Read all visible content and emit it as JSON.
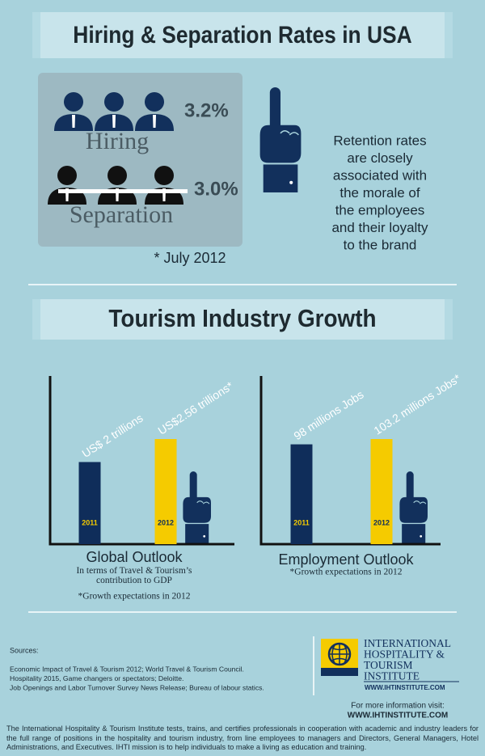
{
  "hiring": {
    "title": "Hiring & Separation Rates in USA",
    "hiring_rate": "3.2%",
    "hiring_label": "Hiring",
    "separation_rate": "3.0%",
    "separation_label": "Separation",
    "note": "* July 2012",
    "retention_lines": [
      "Retention rates",
      "are closely",
      "associated with",
      "the morale of",
      "the employees",
      "and their loyalty",
      "to the brand"
    ]
  },
  "growth": {
    "title": "Tourism Industry Growth"
  },
  "chart_data": [
    {
      "type": "bar",
      "title": "Global Outlook",
      "subtitle": "In terms of Travel & Tourism’s contribution to GDP",
      "note": "*Growth expectations in 2012",
      "categories": [
        "2011",
        "2012"
      ],
      "values": [
        2,
        2.56
      ],
      "value_labels": [
        "US$ 2 trillions",
        "US$2.56 trillions*"
      ],
      "colors": [
        "#0f2d5a",
        "#f5cb00"
      ]
    },
    {
      "type": "bar",
      "title": "Employment Outlook",
      "note": "*Growth expectations in 2012",
      "categories": [
        "2011",
        "2012"
      ],
      "values": [
        98,
        103.2
      ],
      "value_labels": [
        "98 millions Jobs",
        "103.2 millions Jobs*"
      ],
      "colors": [
        "#0f2d5a",
        "#f5cb00"
      ]
    }
  ],
  "sources": {
    "heading": "Sources:",
    "items": [
      "Economic Impact of Travel & Tourism 2012; World Travel & Tourism Council.",
      "Hospitality 2015, Game changers or spectators; Deloitte.",
      "Job Openings and Labor Turnover Survey News Release; Bureau of labour statics."
    ]
  },
  "institute": {
    "name_lines": [
      "INTERNATIONAL",
      "HOSPITALITY &",
      "TOURISM",
      "INSTITUTE"
    ],
    "url": "WWW.IHTINSTITUTE.COM",
    "more_info": "For more information visit:",
    "more_url": "WWW.IHTINSTITUTE.COM"
  },
  "footer": "The International Hospitality & Tourism Institute tests, trains, and certifies professionals in cooperation with academic and industry leaders for the full range of positions in the hospitality and tourism industry, from line employees to managers and Directors, General Managers, Hotel Administrations, and Executives. IHTI mission is to help individuals to make a living as education and training."
}
